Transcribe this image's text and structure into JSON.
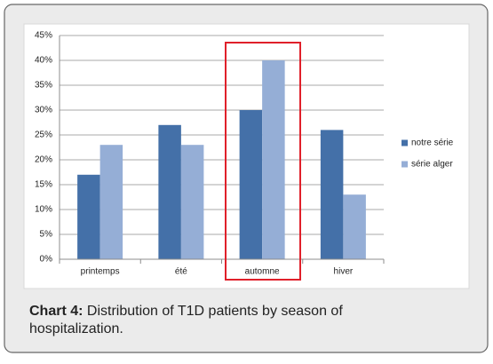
{
  "chart_data": {
    "type": "bar",
    "categories": [
      "printemps",
      "été",
      "automne",
      "hiver"
    ],
    "series": [
      {
        "name": "notre série",
        "color": "#4470a8",
        "values": [
          17,
          27,
          30,
          26
        ]
      },
      {
        "name": "série alger",
        "color": "#95aed6",
        "values": [
          23,
          23,
          40,
          13
        ]
      }
    ],
    "ylim": [
      0,
      45
    ],
    "yticks": [
      {
        "value": 0,
        "label": "0%"
      },
      {
        "value": 5,
        "label": "5%"
      },
      {
        "value": 10,
        "label": "10%"
      },
      {
        "value": 15,
        "label": "15%"
      },
      {
        "value": 20,
        "label": "20%"
      },
      {
        "value": 25,
        "label": "25%"
      },
      {
        "value": 30,
        "label": "30%"
      },
      {
        "value": 35,
        "label": "35%"
      },
      {
        "value": 40,
        "label": "40%"
      },
      {
        "value": 45,
        "label": "45%"
      }
    ],
    "grid": true,
    "legend": "right"
  },
  "caption": {
    "label": "Chart 4:",
    "text": "Distribution of T1D patients by season of hospitalization."
  }
}
